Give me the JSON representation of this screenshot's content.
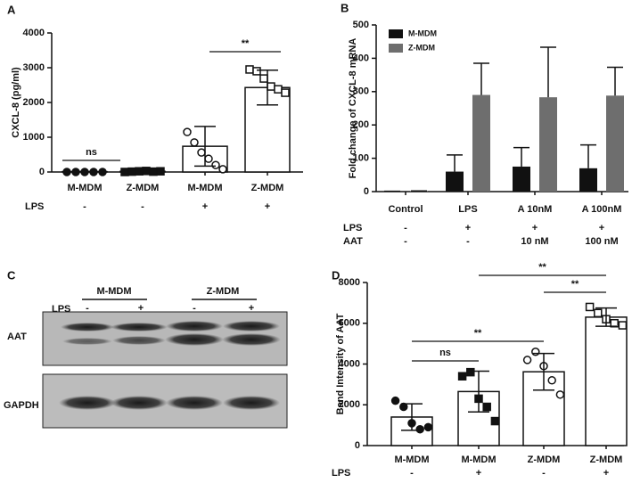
{
  "chart_data": [
    {
      "type": "bar",
      "panel": "A",
      "ylabel": "CXCL-8 (pg/ml)",
      "categories": [
        "M-MDM",
        "Z-MDM",
        "M-MDM",
        "Z-MDM"
      ],
      "values": [
        10,
        20,
        740,
        2430
      ],
      "errors": [
        0,
        0,
        570,
        500
      ],
      "points": [
        [
          0,
          0,
          0,
          0,
          0
        ],
        [
          0,
          10,
          20,
          30,
          10,
          20
        ],
        [
          1150,
          850,
          560,
          380,
          200,
          80
        ],
        [
          2950,
          2900,
          2690,
          2460,
          2380,
          2280
        ]
      ],
      "rows": [
        {
          "label": "LPS",
          "values": [
            "-",
            "-",
            "+",
            "+"
          ]
        }
      ],
      "annotations": [
        "ns",
        "**"
      ],
      "color": "#ffffff",
      "ylim": [
        0,
        4000
      ],
      "yticks": [
        0,
        1000,
        2000,
        3000,
        4000
      ]
    },
    {
      "type": "grouped_bar",
      "panel": "B",
      "ylabel": "Fold change of CXCL-8 mRNA",
      "categories": [
        "Control",
        "LPS",
        "A 10nM",
        "A 100nM"
      ],
      "series": [
        {
          "name": "M-MDM",
          "color": "#111111",
          "values": [
            1,
            60,
            75,
            70
          ],
          "errors": [
            0,
            50,
            57,
            70
          ]
        },
        {
          "name": "Z-MDM",
          "color": "#6e6e6e",
          "values": [
            2,
            290,
            283,
            288
          ],
          "errors": [
            0,
            95,
            150,
            85
          ]
        }
      ],
      "rows": [
        {
          "label": "LPS",
          "values": [
            "-",
            "+",
            "+",
            "+"
          ]
        },
        {
          "label": "AAT",
          "values": [
            "-",
            "-",
            "10 nM",
            "100 nM"
          ]
        }
      ],
      "legend": "upper left",
      "ylim": [
        0,
        500
      ],
      "yticks": [
        0,
        100,
        200,
        300,
        400,
        500
      ]
    },
    {
      "type": "bar",
      "panel": "D",
      "ylabel": "Band Intensity of AAT",
      "categories": [
        "M-MDM",
        "M-MDM",
        "Z-MDM",
        "Z-MDM"
      ],
      "values": [
        1400,
        2650,
        3620,
        6300
      ],
      "errors": [
        650,
        1000,
        900,
        450
      ],
      "points": [
        [
          2200,
          1900,
          1100,
          800,
          900
        ],
        [
          3400,
          3600,
          2300,
          1900,
          1200
        ],
        [
          4200,
          4600,
          3900,
          3200,
          2500
        ],
        [
          6800,
          6500,
          6200,
          6000,
          5900
        ]
      ],
      "rows": [
        {
          "label": "LPS",
          "values": [
            "-",
            "+",
            "-",
            "+"
          ]
        }
      ],
      "annotations": [
        "**",
        "**",
        "**",
        "ns"
      ],
      "color": "#ffffff",
      "ylim": [
        0,
        8000
      ],
      "yticks": [
        0,
        2000,
        4000,
        6000,
        8000
      ]
    }
  ],
  "blot": {
    "panel": "C",
    "groups": [
      "M-MDM",
      "Z-MDM"
    ],
    "lps_label": "LPS",
    "lps": [
      "-",
      "+",
      "-",
      "+"
    ],
    "bands": [
      "AAT",
      "GAPDH"
    ]
  }
}
